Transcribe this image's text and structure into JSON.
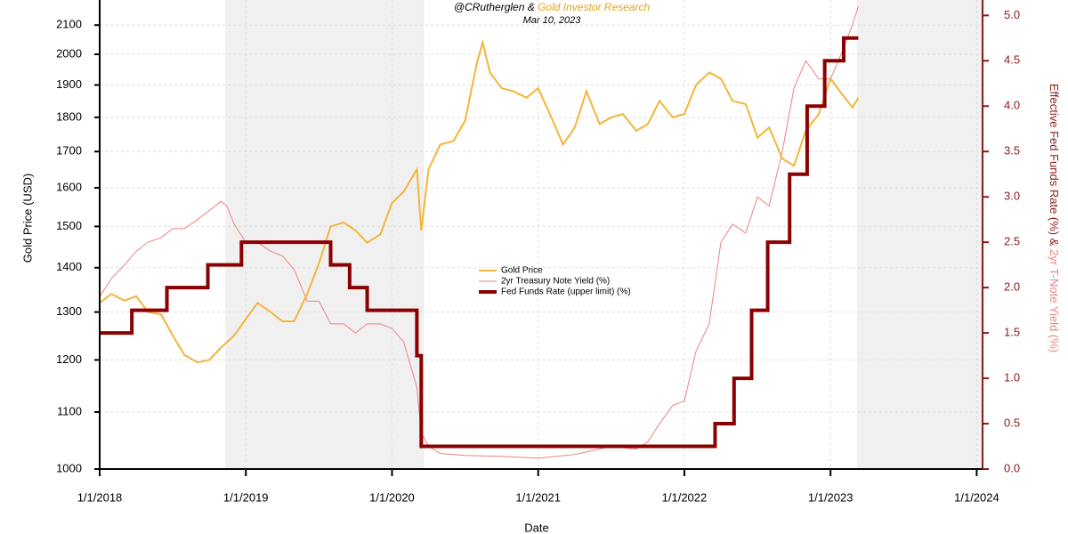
{
  "chart_data": {
    "type": "line",
    "subtitle_parts": [
      "@CRutherglen &",
      "Gold Investor Research"
    ],
    "date": "Mar 10, 2023",
    "x_label": "Date",
    "y_label": "Gold Price (USD)",
    "y2_label_parts": [
      "Effective Fed Funds Rate (%) &",
      "2yr T-Note Yield (%)"
    ],
    "xlim": [
      2018,
      2024.04
    ],
    "xticks": [
      {
        "value": 2018,
        "label": "1/1/2018"
      },
      {
        "value": 2019,
        "label": "1/1/2019"
      },
      {
        "value": 2020,
        "label": "1/1/2020"
      },
      {
        "value": 2021,
        "label": "1/1/2021"
      },
      {
        "value": 2022,
        "label": "1/1/2022"
      },
      {
        "value": 2023,
        "label": "1/1/2023"
      },
      {
        "value": 2024,
        "label": "1/1/2024"
      }
    ],
    "ylim": [
      1000,
      2190
    ],
    "ylog": true,
    "yticks": [
      1000,
      1100,
      1200,
      1300,
      1400,
      1500,
      1600,
      1700,
      1800,
      1900,
      2000,
      2100
    ],
    "y2lim": [
      0,
      5.17
    ],
    "y2ticks": [
      {
        "value": 0,
        "label": "0.0"
      },
      {
        "value": 0.5,
        "label": "0.5"
      },
      {
        "value": 1,
        "label": "1.0"
      },
      {
        "value": 1.5,
        "label": "1.5"
      },
      {
        "value": 2,
        "label": "2.0"
      },
      {
        "value": 2.5,
        "label": "2.5"
      },
      {
        "value": 3,
        "label": "3.0"
      },
      {
        "value": 3.5,
        "label": "3.5"
      },
      {
        "value": 4,
        "label": "4.0"
      },
      {
        "value": 4.5,
        "label": "4.5"
      },
      {
        "value": 5,
        "label": "5.0"
      }
    ],
    "grid": true,
    "shaded_spans": [
      [
        2018.86,
        2020.22
      ],
      [
        2023.18,
        2024.04
      ]
    ],
    "shade_color": "#f0f0f0",
    "legend": "center",
    "series": [
      {
        "name": "Gold Price",
        "color": "#f2b53a",
        "width": 2,
        "x": [
          2018.0,
          2018.08,
          2018.17,
          2018.25,
          2018.33,
          2018.42,
          2018.5,
          2018.58,
          2018.67,
          2018.75,
          2018.83,
          2018.92,
          2019.0,
          2019.08,
          2019.17,
          2019.25,
          2019.33,
          2019.42,
          2019.5,
          2019.58,
          2019.67,
          2019.75,
          2019.83,
          2019.92,
          2020.0,
          2020.08,
          2020.17,
          2020.2,
          2020.25,
          2020.33,
          2020.42,
          2020.5,
          2020.58,
          2020.62,
          2020.67,
          2020.75,
          2020.83,
          2020.92,
          2021.0,
          2021.08,
          2021.17,
          2021.25,
          2021.33,
          2021.42,
          2021.5,
          2021.58,
          2021.67,
          2021.75,
          2021.83,
          2021.92,
          2022.0,
          2022.08,
          2022.17,
          2022.25,
          2022.33,
          2022.42,
          2022.5,
          2022.58,
          2022.67,
          2022.75,
          2022.83,
          2022.92,
          2023.0,
          2023.08,
          2023.15,
          2023.19
        ],
        "values": [
          1320,
          1340,
          1325,
          1335,
          1300,
          1295,
          1250,
          1210,
          1195,
          1200,
          1225,
          1250,
          1285,
          1320,
          1300,
          1280,
          1280,
          1340,
          1410,
          1500,
          1510,
          1490,
          1460,
          1480,
          1560,
          1590,
          1650,
          1490,
          1650,
          1720,
          1730,
          1790,
          1970,
          2040,
          1940,
          1890,
          1880,
          1860,
          1890,
          1810,
          1720,
          1770,
          1880,
          1780,
          1800,
          1810,
          1760,
          1780,
          1850,
          1800,
          1810,
          1900,
          1940,
          1920,
          1850,
          1840,
          1740,
          1770,
          1680,
          1660,
          1760,
          1810,
          1920,
          1870,
          1830,
          1860
        ]
      },
      {
        "name": "2yr Treasury Note Yield (%)",
        "color": "#f08080",
        "width": 1,
        "axis": "y2",
        "x": [
          2018.0,
          2018.08,
          2018.17,
          2018.25,
          2018.33,
          2018.42,
          2018.5,
          2018.58,
          2018.67,
          2018.75,
          2018.83,
          2018.87,
          2018.92,
          2019.0,
          2019.08,
          2019.17,
          2019.25,
          2019.33,
          2019.42,
          2019.5,
          2019.58,
          2019.67,
          2019.75,
          2019.83,
          2019.92,
          2020.0,
          2020.08,
          2020.17,
          2020.2,
          2020.25,
          2020.33,
          2020.5,
          2020.75,
          2021.0,
          2021.25,
          2021.5,
          2021.67,
          2021.75,
          2021.83,
          2021.92,
          2022.0,
          2022.08,
          2022.17,
          2022.25,
          2022.33,
          2022.42,
          2022.5,
          2022.58,
          2022.67,
          2022.75,
          2022.83,
          2022.92,
          2023.0,
          2023.08,
          2023.15,
          2023.19
        ],
        "values": [
          1.9,
          2.1,
          2.25,
          2.4,
          2.5,
          2.55,
          2.65,
          2.65,
          2.75,
          2.85,
          2.95,
          2.9,
          2.7,
          2.5,
          2.5,
          2.4,
          2.35,
          2.2,
          1.85,
          1.85,
          1.6,
          1.6,
          1.5,
          1.6,
          1.6,
          1.55,
          1.4,
          0.9,
          0.4,
          0.25,
          0.17,
          0.15,
          0.14,
          0.12,
          0.16,
          0.25,
          0.22,
          0.3,
          0.5,
          0.7,
          0.75,
          1.3,
          1.6,
          2.5,
          2.7,
          2.6,
          3.0,
          2.9,
          3.5,
          4.2,
          4.5,
          4.3,
          4.3,
          4.6,
          4.9,
          5.1
        ]
      },
      {
        "name": "Fed Funds Rate (upper limit) (%)",
        "color": "#8b0000",
        "width": 4,
        "axis": "y2",
        "step": true,
        "x": [
          2018.0,
          2018.22,
          2018.46,
          2018.74,
          2018.97,
          2019.58,
          2019.71,
          2019.83,
          2020.17,
          2020.2,
          2022.21,
          2022.34,
          2022.46,
          2022.57,
          2022.72,
          2022.84,
          2022.96,
          2023.09,
          2023.19
        ],
        "values": [
          1.5,
          1.75,
          2.0,
          2.25,
          2.5,
          2.25,
          2.0,
          1.75,
          1.25,
          0.25,
          0.5,
          1.0,
          1.75,
          2.5,
          3.25,
          4.0,
          4.5,
          4.75,
          4.75
        ]
      }
    ]
  }
}
